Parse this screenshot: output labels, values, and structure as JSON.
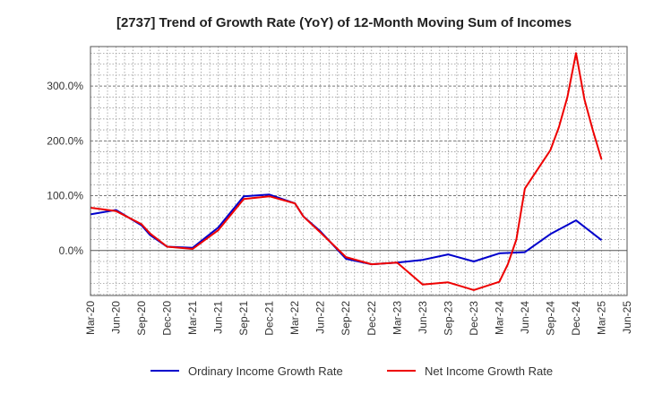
{
  "chart_data": {
    "type": "line",
    "title": "[2737]  Trend of Growth Rate (YoY) of 12-Month Moving Sum of Incomes",
    "xlabel": "",
    "ylabel": "",
    "x_tick_labels": [
      "Mar-20",
      "Jun-20",
      "Sep-20",
      "Dec-20",
      "Mar-21",
      "Jun-21",
      "Sep-21",
      "Dec-21",
      "Mar-22",
      "Jun-22",
      "Sep-22",
      "Dec-22",
      "Mar-23",
      "Jun-23",
      "Sep-23",
      "Dec-23",
      "Mar-24",
      "Jun-24",
      "Sep-24",
      "Dec-24",
      "Mar-25",
      "Jun-25"
    ],
    "y_ticks": [
      0,
      100,
      200,
      300
    ],
    "y_tick_labels": [
      "0.0%",
      "100.0%",
      "200.0%",
      "300.0%"
    ],
    "ylim": [
      -82,
      372
    ],
    "grid": true,
    "legend_position": "bottom",
    "series": [
      {
        "name": "Ordinary Income Growth Rate",
        "color": "#0000cc",
        "x": [
          "Mar-20",
          "Jun-20",
          "Sep-20",
          "Oct-20",
          "Dec-20",
          "Mar-21",
          "Jun-21",
          "Sep-21",
          "Dec-21",
          "Mar-22",
          "Apr-22",
          "Jun-22",
          "Sep-22",
          "Dec-22",
          "Mar-23",
          "Jun-23",
          "Sep-23",
          "Dec-23",
          "Mar-24",
          "Jun-24",
          "Sep-24",
          "Dec-24",
          "Mar-25"
        ],
        "values": [
          66,
          74,
          46,
          28,
          7,
          5,
          42,
          99,
          102,
          86,
          62,
          35,
          -15,
          -25,
          -22,
          -17,
          -7,
          -20,
          -5,
          -3,
          30,
          55,
          19
        ]
      },
      {
        "name": "Net Income Growth Rate",
        "color": "#ee0000",
        "x": [
          "Mar-20",
          "Jun-20",
          "Sep-20",
          "Oct-20",
          "Dec-20",
          "Mar-21",
          "Jun-21",
          "Sep-21",
          "Dec-21",
          "Mar-22",
          "Apr-22",
          "Jun-22",
          "Sep-22",
          "Dec-22",
          "Mar-23",
          "Jun-23",
          "Sep-23",
          "Dec-23",
          "Mar-24",
          "Apr-24",
          "May-24",
          "Jun-24",
          "Sep-24",
          "Oct-24",
          "Nov-24",
          "Dec-24",
          "Jan-25",
          "Feb-25",
          "Mar-25"
        ],
        "values": [
          78,
          72,
          48,
          31,
          7,
          3,
          37,
          94,
          99,
          86,
          62,
          33,
          -12,
          -25,
          -22,
          -62,
          -58,
          -72,
          -57,
          -25,
          20,
          113,
          183,
          225,
          280,
          360,
          275,
          218,
          166
        ]
      }
    ]
  }
}
